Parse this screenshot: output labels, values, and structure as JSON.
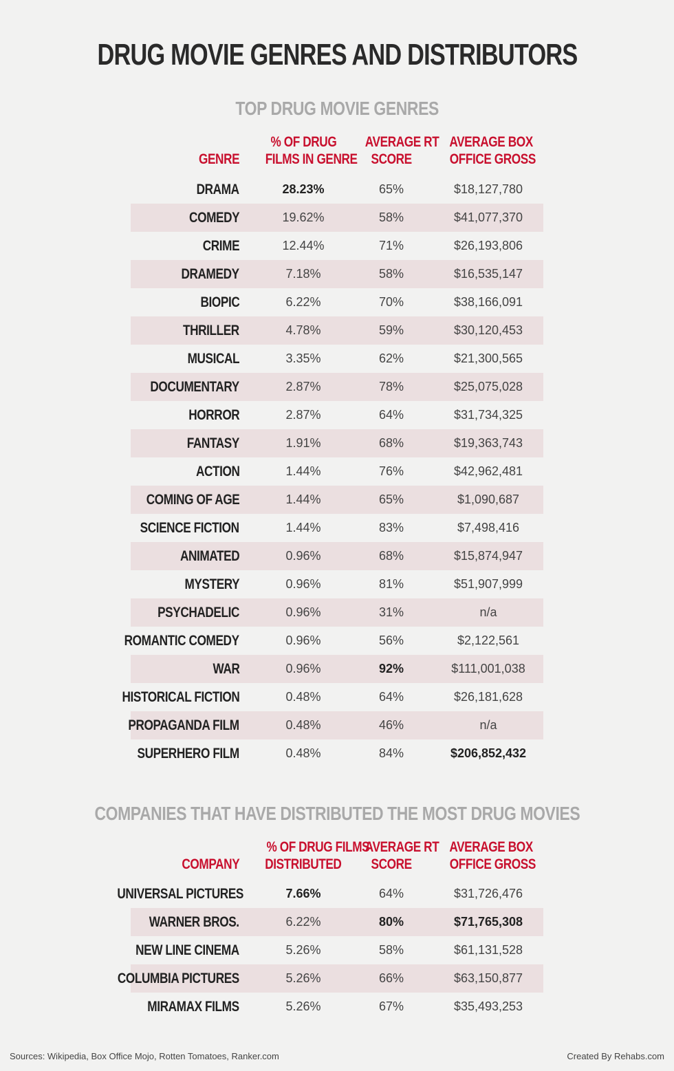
{
  "title": "DRUG MOVIE GENRES AND DISTRIBUTORS",
  "genres": {
    "title": "TOP DRUG MOVIE GENRES",
    "headers": [
      [
        "GENRE"
      ],
      [
        "% OF DRUG",
        "FILMS IN GENRE"
      ],
      [
        "AVERAGE RT",
        "SCORE"
      ],
      [
        "AVERAGE BOX",
        "OFFICE GROSS"
      ]
    ],
    "rows": [
      [
        "DRAMA",
        "28.23%",
        "65%",
        "$18,127,780"
      ],
      [
        "COMEDY",
        "19.62%",
        "58%",
        "$41,077,370"
      ],
      [
        "CRIME",
        "12.44%",
        "71%",
        "$26,193,806"
      ],
      [
        "DRAMEDY",
        "7.18%",
        "58%",
        "$16,535,147"
      ],
      [
        "BIOPIC",
        "6.22%",
        "70%",
        "$38,166,091"
      ],
      [
        "THRILLER",
        "4.78%",
        "59%",
        "$30,120,453"
      ],
      [
        "MUSICAL",
        "3.35%",
        "62%",
        "$21,300,565"
      ],
      [
        "DOCUMENTARY",
        "2.87%",
        "78%",
        "$25,075,028"
      ],
      [
        "HORROR",
        "2.87%",
        "64%",
        "$31,734,325"
      ],
      [
        "FANTASY",
        "1.91%",
        "68%",
        "$19,363,743"
      ],
      [
        "ACTION",
        "1.44%",
        "76%",
        "$42,962,481"
      ],
      [
        "COMING OF AGE",
        "1.44%",
        "65%",
        "$1,090,687"
      ],
      [
        "SCIENCE FICTION",
        "1.44%",
        "83%",
        "$7,498,416"
      ],
      [
        "ANIMATED",
        "0.96%",
        "68%",
        "$15,874,947"
      ],
      [
        "MYSTERY",
        "0.96%",
        "81%",
        "$51,907,999"
      ],
      [
        "PSYCHADELIC",
        "0.96%",
        "31%",
        "n/a"
      ],
      [
        "ROMANTIC COMEDY",
        "0.96%",
        "56%",
        "$2,122,561"
      ],
      [
        "WAR",
        "0.96%",
        "92%",
        "$111,001,038"
      ],
      [
        "HISTORICAL FICTION",
        "0.48%",
        "64%",
        "$26,181,628"
      ],
      [
        "PROPAGANDA FILM",
        "0.48%",
        "46%",
        "n/a"
      ],
      [
        "SUPERHERO FILM",
        "0.48%",
        "84%",
        "$206,852,432"
      ]
    ]
  },
  "companies": {
    "title": "COMPANIES THAT HAVE DISTRIBUTED THE MOST DRUG MOVIES",
    "headers": [
      [
        "COMPANY"
      ],
      [
        "% OF DRUG FILMS",
        "DISTRIBUTED"
      ],
      [
        "AVERAGE RT",
        "SCORE"
      ],
      [
        "AVERAGE BOX",
        "OFFICE GROSS"
      ]
    ],
    "rows": [
      [
        "UNIVERSAL PICTURES",
        "7.66%",
        "64%",
        "$31,726,476"
      ],
      [
        "WARNER BROS.",
        "6.22%",
        "80%",
        "$71,765,308"
      ],
      [
        "NEW LINE CINEMA",
        "5.26%",
        "58%",
        "$61,131,528"
      ],
      [
        "COLUMBIA PICTURES",
        "5.26%",
        "66%",
        "$63,150,877"
      ],
      [
        "MIRAMAX FILMS",
        "5.26%",
        "67%",
        "$35,493,253"
      ]
    ]
  },
  "footer": {
    "sources": "Sources: Wikipedia, Box Office Mojo, Rotten Tomatoes, Ranker.com",
    "credit": "Created By Rehabs.com"
  }
}
